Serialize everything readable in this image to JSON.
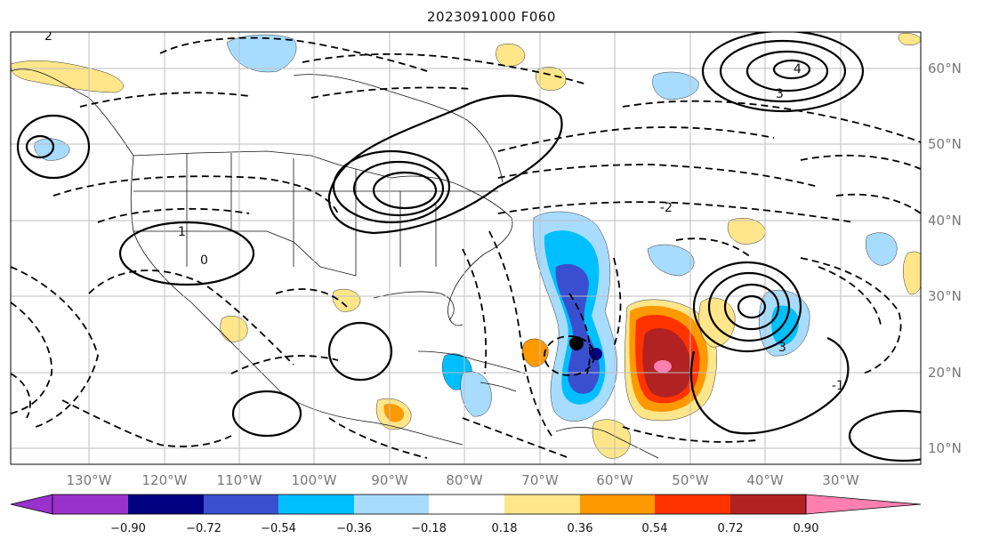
{
  "title": "2023091000 F060",
  "lon_labels": [
    "130°W",
    "120°W",
    "110°W",
    "100°W",
    "90°W",
    "80°W",
    "70°W",
    "60°W",
    "50°W",
    "40°W",
    "30°W"
  ],
  "lat_labels": [
    "60°N",
    "50°N",
    "40°N",
    "30°N",
    "20°N",
    "10°N"
  ],
  "colorbar": {
    "ticks": [
      "−0.90",
      "−0.72",
      "−0.54",
      "−0.36",
      "−0.18",
      "0.18",
      "0.36",
      "0.54",
      "0.72",
      "0.90"
    ],
    "colors": {
      "below": "#9932cc",
      "bins": [
        "#000080",
        "#3a4fcf",
        "#00bfff",
        "#a8dcff",
        "#ffffff",
        "#ffe68a",
        "#ff9900",
        "#ff3300",
        "#b22222"
      ],
      "above": "#ff80b0"
    }
  },
  "contour_labels": [
    "4",
    "3",
    "2",
    "1",
    "0",
    "-1",
    "-2",
    "3"
  ]
}
